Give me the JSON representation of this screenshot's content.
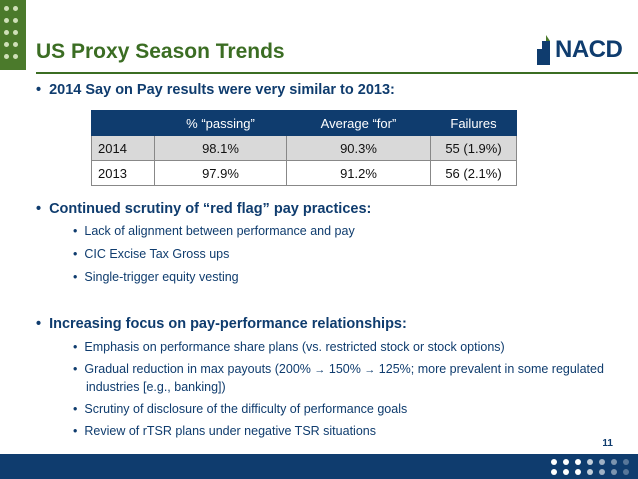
{
  "header": {
    "title": "US Proxy Season Trends",
    "logo_text": "NACD"
  },
  "section1": {
    "heading": "2014 Say on Pay results were very similar to 2013:",
    "table": {
      "columns": [
        "",
        "% “passing”",
        "Average “for”",
        "Failures"
      ],
      "rows": [
        {
          "year": "2014",
          "passing": "98.1%",
          "average_for": "90.3%",
          "failures": "55 (1.9%)"
        },
        {
          "year": "2013",
          "passing": "97.9%",
          "average_for": "91.2%",
          "failures": "56 (2.1%)"
        }
      ]
    }
  },
  "section2": {
    "heading": "Continued scrutiny of “red flag” pay practices:",
    "items": [
      "Lack of alignment between performance and pay",
      "CIC Excise Tax Gross ups",
      "Single-trigger equity vesting"
    ]
  },
  "section3": {
    "heading": "Increasing focus on pay-performance relationships:",
    "item1": "Emphasis on performance share plans (vs. restricted stock or stock options)",
    "item2_a": "Gradual reduction in max payouts (200% ",
    "item2_b": " 150% ",
    "item2_c": " 125%; more prevalent in some regulated industries [e.g., banking])",
    "arrow": "→",
    "item3": "Scrutiny of disclosure of the difficulty of performance goals",
    "item4": "Review of rTSR plans under negative TSR situations"
  },
  "page_number": "11",
  "colors": {
    "title_green": "#3b6d23",
    "navy": "#0f3c6e",
    "table_alt_row": "#d9d9d9"
  }
}
